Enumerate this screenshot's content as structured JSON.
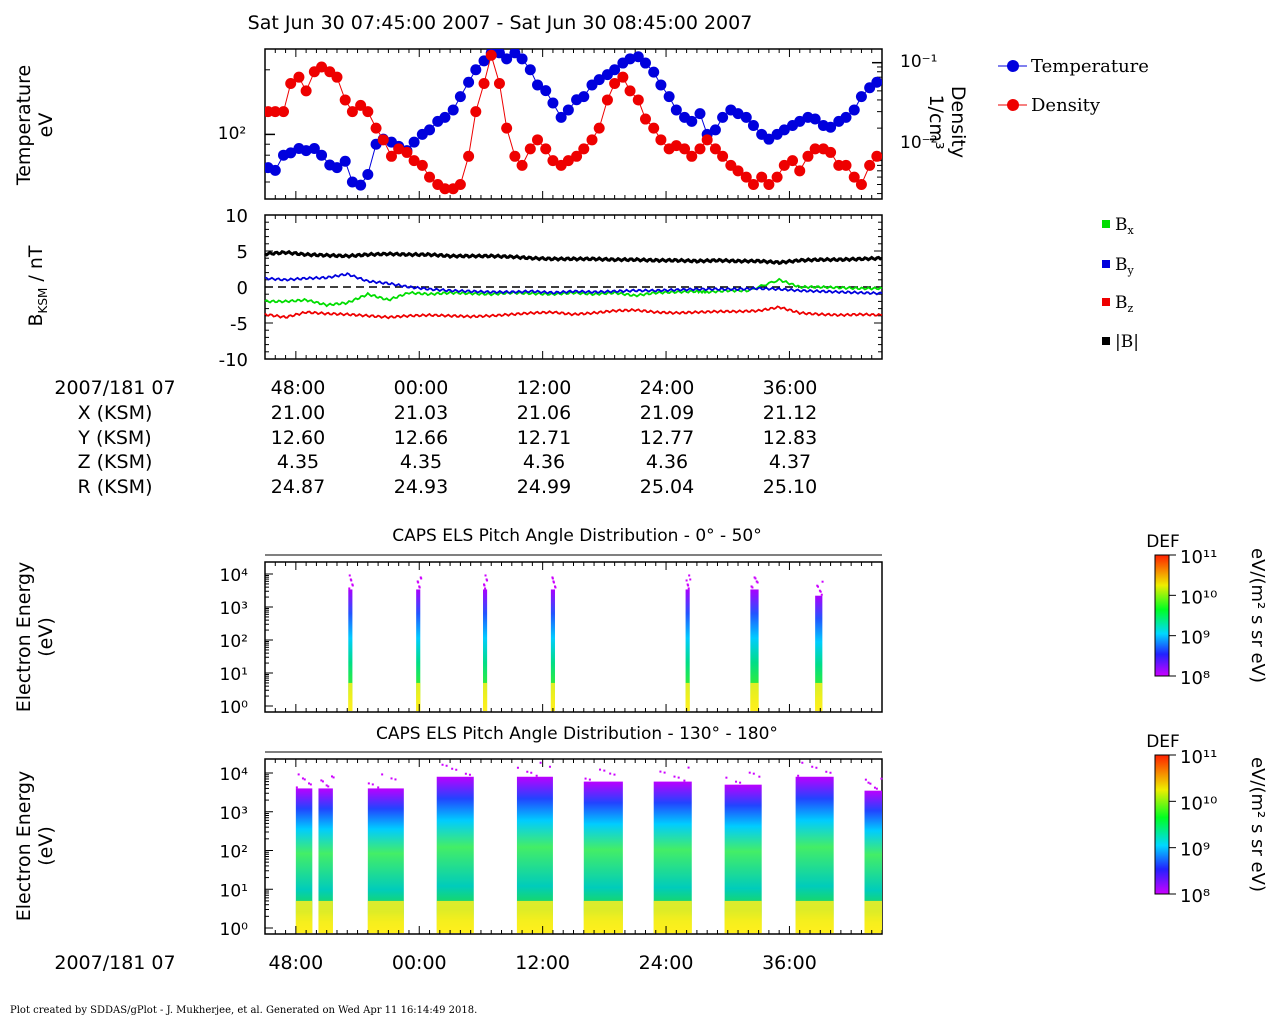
{
  "title": "Sat Jun 30 07:45:00 2007 - Sat Jun 30 08:45:00 2007",
  "footer": "Plot created by SDDAS/gPlot - J. Mukherjee, et al.  Generated on Wed Apr 11 16:14:49 2018.",
  "colors": {
    "temperature": "#0000dd",
    "density": "#ee0000",
    "bx": "#00dd00",
    "by": "#0000dd",
    "bz": "#ee0000",
    "btot": "#000000"
  },
  "chart_data": [
    {
      "id": "plasma",
      "type": "line",
      "ylabel_left": [
        "Temperature",
        "eV"
      ],
      "ylabel_right": [
        "Density",
        "1/cm³"
      ],
      "left_axis": {
        "scale": "log",
        "ticks": [
          "10²"
        ],
        "ylim": [
          50,
          250
        ]
      },
      "right_axis": {
        "scale": "log",
        "ticks": [
          "10⁻¹",
          "10⁻²"
        ],
        "ylim": [
          0.0035,
          0.14
        ]
      },
      "xlim_minutes": [
        45,
        105
      ],
      "legend": [
        "Temperature",
        "Density"
      ],
      "legend_position": "outside-right",
      "series": [
        {
          "name": "Temperature",
          "axis": "left",
          "x": [
            45.3,
            46,
            46.8,
            47.5,
            48.3,
            49,
            49.8,
            50.5,
            51.3,
            52,
            52.8,
            53.5,
            54.3,
            55,
            55.8,
            56.5,
            57.3,
            58,
            58.8,
            59.5,
            60.3,
            61,
            61.8,
            62.5,
            63.3,
            64,
            64.8,
            65.5,
            66.3,
            67,
            67.8,
            68.5,
            69.3,
            70,
            70.8,
            71.5,
            72.3,
            73,
            73.8,
            74.5,
            75.3,
            76,
            76.8,
            77.5,
            78.3,
            79,
            79.8,
            80.5,
            81.3,
            82,
            82.8,
            83.5,
            84.3,
            85,
            85.8,
            86.5,
            87.3,
            88,
            88.8,
            89.5,
            90.3,
            91,
            91.8,
            92.5,
            93.3,
            94,
            94.8,
            95.5,
            96.3,
            97,
            97.8,
            98.5,
            99.3,
            100,
            100.8,
            101.5,
            102.3,
            103,
            103.8,
            104.5
          ],
          "y": [
            70,
            68,
            80,
            82,
            86,
            84,
            86,
            80,
            72,
            70,
            75,
            60,
            58,
            65,
            90,
            95,
            92,
            88,
            84,
            92,
            100,
            105,
            115,
            120,
            130,
            150,
            175,
            200,
            220,
            240,
            240,
            225,
            240,
            225,
            200,
            170,
            160,
            140,
            120,
            130,
            145,
            150,
            170,
            180,
            190,
            200,
            215,
            225,
            230,
            215,
            195,
            170,
            150,
            130,
            120,
            115,
            125,
            100,
            105,
            120,
            130,
            125,
            120,
            110,
            100,
            95,
            100,
            105,
            110,
            115,
            120,
            118,
            110,
            108,
            115,
            120,
            130,
            150,
            165,
            175
          ]
        },
        {
          "name": "Density",
          "axis": "right",
          "x": [
            45.3,
            46,
            46.8,
            47.5,
            48.3,
            49,
            49.8,
            50.5,
            51.3,
            52,
            52.8,
            53.5,
            54.3,
            55,
            55.8,
            56.5,
            57.3,
            58,
            58.8,
            59.5,
            60.3,
            61,
            61.8,
            62.5,
            63.3,
            64,
            64.8,
            65.5,
            66.3,
            67,
            67.8,
            68.5,
            69.3,
            70,
            70.8,
            71.5,
            72.3,
            73,
            73.8,
            74.5,
            75.3,
            76,
            76.8,
            77.5,
            78.3,
            79,
            79.8,
            80.5,
            81.3,
            82,
            82.8,
            83.5,
            84.3,
            85,
            85.8,
            86.5,
            87.3,
            88,
            88.8,
            89.5,
            90.3,
            91,
            91.8,
            92.5,
            93.3,
            94,
            94.8,
            95.5,
            96.3,
            97,
            97.8,
            98.5,
            99.3,
            100,
            100.8,
            101.5,
            102.3,
            103,
            103.8,
            104.5
          ],
          "y": [
            0.03,
            0.03,
            0.03,
            0.06,
            0.07,
            0.05,
            0.08,
            0.09,
            0.08,
            0.07,
            0.04,
            0.03,
            0.035,
            0.03,
            0.02,
            0.015,
            0.01,
            0.012,
            0.011,
            0.009,
            0.008,
            0.006,
            0.005,
            0.0045,
            0.0045,
            0.005,
            0.01,
            0.03,
            0.06,
            0.12,
            0.06,
            0.02,
            0.01,
            0.008,
            0.012,
            0.015,
            0.012,
            0.009,
            0.008,
            0.009,
            0.01,
            0.012,
            0.015,
            0.02,
            0.04,
            0.06,
            0.07,
            0.05,
            0.04,
            0.025,
            0.02,
            0.015,
            0.012,
            0.013,
            0.012,
            0.01,
            0.012,
            0.015,
            0.012,
            0.01,
            0.008,
            0.007,
            0.006,
            0.005,
            0.006,
            0.005,
            0.006,
            0.008,
            0.009,
            0.007,
            0.01,
            0.012,
            0.012,
            0.011,
            0.008,
            0.008,
            0.006,
            0.005,
            0.008,
            0.01
          ]
        }
      ]
    },
    {
      "id": "mag",
      "type": "line",
      "ylabel": "B_KSM / nT",
      "ylim": [
        -10,
        10
      ],
      "yticks": [
        "10",
        "5",
        "0",
        "-5",
        "-10"
      ],
      "xlim_minutes": [
        45,
        105
      ],
      "zero_line": "dashed",
      "legend_position": "outside-right",
      "legend": [
        {
          "base": "B",
          "sub": "x"
        },
        {
          "base": "B",
          "sub": "y"
        },
        {
          "base": "B",
          "sub": "z"
        },
        {
          "base": "|B|",
          "sub": ""
        }
      ],
      "series": [
        {
          "name": "Bx",
          "x": [
            45,
            47,
            49,
            51,
            53,
            55,
            57,
            59,
            61,
            63,
            65,
            67,
            69,
            71,
            73,
            75,
            77,
            79,
            81,
            83,
            85,
            87,
            88,
            90,
            92,
            95,
            97,
            99,
            101,
            103,
            105
          ],
          "y": [
            -2,
            -2,
            -1.8,
            -2.5,
            -2.2,
            -1,
            -1.8,
            -0.8,
            -1,
            -0.8,
            -0.9,
            -1,
            -0.8,
            -0.9,
            -1,
            -0.8,
            -1,
            -0.8,
            -1.2,
            -0.8,
            -0.7,
            -0.6,
            -0.7,
            -0.5,
            -0.5,
            1,
            0,
            0,
            -0.1,
            -0.2,
            -0.2
          ]
        },
        {
          "name": "By",
          "x": [
            45,
            47,
            49,
            51,
            53,
            55,
            57,
            59,
            61,
            63,
            65,
            67,
            69,
            71,
            73,
            75,
            77,
            79,
            81,
            83,
            85,
            87,
            89,
            91,
            93,
            95,
            97,
            99,
            101,
            103,
            105
          ],
          "y": [
            1.2,
            1,
            1.2,
            1.3,
            1.8,
            0.8,
            0.5,
            0,
            -0.3,
            -0.5,
            -0.6,
            -0.7,
            -0.7,
            -0.6,
            -0.8,
            -0.6,
            -0.7,
            -0.6,
            -0.5,
            -0.5,
            -0.4,
            -0.3,
            -0.3,
            -0.3,
            -0.2,
            -0.3,
            -0.5,
            -0.6,
            -0.7,
            -0.8,
            -0.9
          ]
        },
        {
          "name": "Bz",
          "x": [
            45,
            47,
            49,
            51,
            53,
            55,
            57,
            59,
            61,
            63,
            65,
            67,
            69,
            71,
            73,
            75,
            77,
            79,
            81,
            83,
            85,
            87,
            89,
            91,
            93,
            95,
            97,
            99,
            101,
            103,
            105
          ],
          "y": [
            -3.8,
            -4.2,
            -3.5,
            -3.7,
            -3.8,
            -4,
            -4.2,
            -4,
            -3.9,
            -4,
            -4.1,
            -4,
            -3.8,
            -3.6,
            -3.5,
            -3.8,
            -3.6,
            -3.3,
            -3.2,
            -3.5,
            -3.6,
            -3.5,
            -3.4,
            -3.4,
            -3.3,
            -2.8,
            -3.6,
            -3.8,
            -3.9,
            -3.8,
            -3.9
          ]
        },
        {
          "name": "|B|",
          "x": [
            45,
            47,
            49,
            51,
            53,
            55,
            57,
            59,
            61,
            63,
            65,
            67,
            69,
            71,
            73,
            75,
            77,
            79,
            81,
            83,
            85,
            87,
            89,
            91,
            93,
            95,
            97,
            99,
            101,
            103,
            105
          ],
          "y": [
            4.6,
            4.8,
            4.5,
            4.4,
            4.3,
            4.5,
            4.6,
            4.5,
            4.5,
            4.3,
            4.3,
            4.3,
            4.2,
            4,
            3.9,
            3.9,
            3.9,
            3.8,
            3.8,
            3.7,
            3.7,
            3.6,
            3.7,
            3.6,
            3.6,
            3.4,
            3.7,
            3.8,
            3.8,
            3.9,
            4
          ]
        }
      ]
    },
    {
      "id": "ephemeris",
      "type": "table",
      "columns": [
        "48:00",
        "00:00",
        "12:00",
        "24:00",
        "36:00"
      ],
      "rows": [
        {
          "label": "2007/181 07",
          "values": [
            "48:00",
            "00:00",
            "12:00",
            "24:00",
            "36:00"
          ]
        },
        {
          "label": "X (KSM)",
          "values": [
            "21.00",
            "21.03",
            "21.06",
            "21.09",
            "21.12"
          ]
        },
        {
          "label": "Y (KSM)",
          "values": [
            "12.60",
            "12.66",
            "12.71",
            "12.77",
            "12.83"
          ]
        },
        {
          "label": "Z (KSM)",
          "values": [
            "4.35",
            "4.35",
            "4.36",
            "4.36",
            "4.37"
          ]
        },
        {
          "label": "R (KSM)",
          "values": [
            "24.87",
            "24.93",
            "24.99",
            "25.04",
            "25.10"
          ]
        }
      ]
    },
    {
      "id": "els1",
      "type": "heatmap",
      "title": "CAPS ELS Pitch Angle Distribution - 0° - 50°",
      "ylabel": [
        "Electron Energy",
        "(eV)"
      ],
      "yscale": "log",
      "yticks": [
        "10⁴",
        "10³",
        "10²",
        "10¹",
        "10⁰"
      ],
      "colorbar": {
        "label": "DEF",
        "units": "eV/(m² s sr eV)",
        "ticks": [
          "10¹¹",
          "10¹⁰",
          "10⁹",
          "10⁸"
        ],
        "scale": "log"
      },
      "bursts_minutes": [
        [
          53.1,
          53.5,
          2,
          3400
        ],
        [
          59.7,
          60.1,
          3,
          3400
        ],
        [
          66.2,
          66.6,
          1.8,
          3400
        ],
        [
          72.8,
          73.2,
          2,
          3400
        ],
        [
          85.9,
          86.3,
          2,
          3400
        ],
        [
          92.2,
          93.0,
          1.5,
          3400
        ],
        [
          98.5,
          99.2,
          1.5,
          2200
        ]
      ]
    },
    {
      "id": "els2",
      "type": "heatmap",
      "title": "CAPS ELS Pitch Angle Distribution - 130° - 180°",
      "ylabel": [
        "Electron Energy",
        "(eV)"
      ],
      "yscale": "log",
      "yticks": [
        "10⁴",
        "10³",
        "10²",
        "10¹",
        "10⁰"
      ],
      "colorbar": {
        "label": "DEF",
        "units": "eV/(m² s sr eV)",
        "ticks": [
          "10¹¹",
          "10¹⁰",
          "10⁹",
          "10⁸"
        ],
        "scale": "log"
      },
      "bursts_minutes": [
        [
          48.0,
          49.6,
          1,
          4000
        ],
        [
          50.2,
          51.6,
          1,
          4000
        ],
        [
          55.0,
          58.5,
          1,
          4000
        ],
        [
          61.7,
          65.3,
          1,
          8000
        ],
        [
          69.5,
          73.0,
          1,
          8000
        ],
        [
          76.0,
          79.8,
          1,
          6000
        ],
        [
          82.8,
          86.5,
          1,
          6000
        ],
        [
          89.7,
          93.3,
          1,
          5000
        ],
        [
          96.6,
          100.3,
          1,
          8000
        ],
        [
          103.3,
          105.0,
          1,
          3500
        ]
      ]
    }
  ],
  "xaxis": {
    "label": "2007/181 07",
    "ticks": [
      "48:00",
      "00:00",
      "12:00",
      "24:00",
      "36:00"
    ],
    "tick_minutes": [
      48,
      60,
      72,
      84,
      96
    ]
  }
}
